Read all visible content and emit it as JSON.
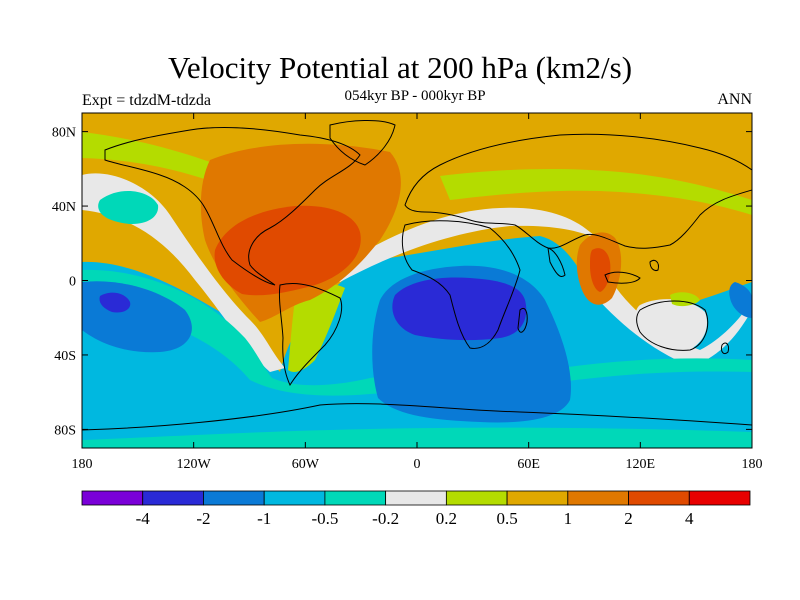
{
  "header": {
    "title": "Velocity Potential at 200 hPa (km2/s)",
    "subtitle": "054kyr BP - 000kyr BP",
    "left_label": "Expt = tdzdM-tdzda",
    "right_label": "ANN"
  },
  "axes": {
    "lat_ticks": [
      "80N",
      "40N",
      "0",
      "40S",
      "80S"
    ],
    "lat_values": [
      80,
      40,
      0,
      -40,
      -80
    ],
    "lon_ticks": [
      "180",
      "120W",
      "60W",
      "0",
      "60E",
      "120E",
      "180"
    ],
    "lon_values": [
      -180,
      -120,
      -60,
      0,
      60,
      120,
      180
    ],
    "lat_range": [
      -90,
      90
    ],
    "lon_range": [
      -180,
      180
    ]
  },
  "colorbar": {
    "colors": [
      "#7a00d8",
      "#2a2ad6",
      "#0a7ad6",
      "#00b8e0",
      "#00d8b8",
      "#e8e8e8",
      "#b4dc00",
      "#e0a800",
      "#e07800",
      "#e04a00",
      "#e80000"
    ],
    "labels": [
      "-4",
      "-2",
      "-1",
      "-0.5",
      "-0.2",
      "0.2",
      "0.5",
      "1",
      "2",
      "4"
    ]
  }
}
